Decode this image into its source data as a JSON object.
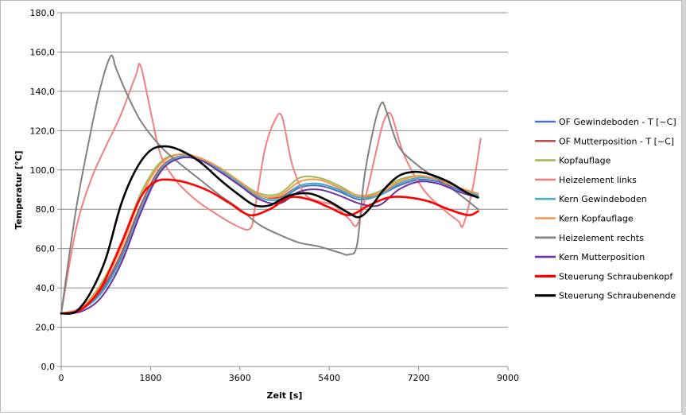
{
  "chart_data": {
    "type": "line",
    "xlabel": "Zeit [s]",
    "ylabel": "Temperatur [°C]",
    "xlim": [
      0,
      9000
    ],
    "ylim": [
      0,
      180
    ],
    "xticks": [
      "0",
      "1800",
      "3600",
      "5400",
      "7200",
      "9000"
    ],
    "xtick_values": [
      0,
      1800,
      3600,
      5400,
      7200,
      9000
    ],
    "yticks": [
      "0,0",
      "20,0",
      "40,0",
      "60,0",
      "80,0",
      "100,0",
      "120,0",
      "140,0",
      "160,0",
      "180,0"
    ],
    "ytick_values": [
      0,
      20,
      40,
      60,
      80,
      100,
      120,
      140,
      160,
      180
    ],
    "grid": "horizontal",
    "legend_position": "right",
    "series": [
      {
        "name": "OF Gewindeboden  - T [~C]",
        "color": "#4472c4",
        "width": 2,
        "x": [
          0,
          400,
          800,
          1200,
          1600,
          2000,
          2400,
          2800,
          3200,
          3600,
          4000,
          4400,
          4800,
          5200,
          5600,
          6000,
          6400,
          6800,
          7200,
          7600,
          8000,
          8400
        ],
        "y": [
          27,
          29,
          38,
          55,
          80,
          100,
          107,
          106,
          100,
          93,
          86,
          85,
          91,
          92,
          89,
          85,
          87,
          92,
          95,
          94,
          90,
          87
        ]
      },
      {
        "name": "OF Mutterposition - T [~C]",
        "color": "#c0504d",
        "width": 2,
        "x": [
          0,
          400,
          800,
          1200,
          1600,
          2000,
          2400,
          2800,
          3200,
          3600,
          4000,
          4400,
          4800,
          5200,
          5600,
          6000,
          6400,
          6800,
          7200,
          7600,
          8000,
          8400
        ],
        "y": [
          27,
          29,
          39,
          57,
          82,
          101,
          107,
          106,
          100,
          93,
          87,
          86,
          92,
          93,
          90,
          86,
          88,
          93,
          96,
          95,
          91,
          87
        ]
      },
      {
        "name": "Kopfauflage",
        "color": "#9bbb59",
        "width": 2,
        "x": [
          0,
          400,
          800,
          1200,
          1600,
          2000,
          2400,
          2800,
          3200,
          3600,
          4000,
          4400,
          4800,
          5200,
          5600,
          6000,
          6400,
          6800,
          7200,
          7600,
          8000,
          8400
        ],
        "y": [
          27,
          30,
          42,
          62,
          88,
          104,
          108,
          106,
          101,
          94,
          88,
          88,
          96,
          96,
          92,
          87,
          89,
          95,
          97,
          95,
          91,
          88
        ]
      },
      {
        "name": "Heizelement links",
        "color": "#f08080",
        "width": 2,
        "x": [
          0,
          300,
          600,
          900,
          1200,
          1500,
          1600,
          1800,
          2000,
          2300,
          2700,
          3100,
          3500,
          3800,
          3900,
          4100,
          4300,
          4450,
          4650,
          4900,
          5200,
          5500,
          5800,
          5960,
          6150,
          6350,
          6500,
          6650,
          6900,
          7300,
          7700,
          8000,
          8100,
          8300,
          8450
        ],
        "y": [
          27,
          70,
          95,
          112,
          128,
          148,
          153,
          130,
          108,
          95,
          85,
          78,
          72,
          70,
          80,
          110,
          125,
          127,
          103,
          88,
          84,
          82,
          75,
          72,
          88,
          110,
          125,
          128,
          108,
          90,
          80,
          74,
          72,
          92,
          116
        ]
      },
      {
        "name": "Kern Gewindeboden",
        "color": "#4bacc6",
        "width": 2,
        "x": [
          0,
          400,
          800,
          1200,
          1600,
          2000,
          2400,
          2800,
          3200,
          3600,
          4000,
          4400,
          4800,
          5200,
          5600,
          6000,
          6400,
          6800,
          7200,
          7600,
          8000,
          8400
        ],
        "y": [
          27,
          29,
          37,
          54,
          80,
          100,
          107,
          106,
          100,
          93,
          86,
          85,
          92,
          93,
          90,
          86,
          87,
          93,
          96,
          95,
          91,
          87
        ]
      },
      {
        "name": "Kern Kopfauflage",
        "color": "#f79646",
        "width": 2,
        "x": [
          0,
          400,
          800,
          1200,
          1600,
          2000,
          2400,
          2800,
          3200,
          3600,
          4000,
          4400,
          4800,
          5200,
          5600,
          6000,
          6400,
          6800,
          7200,
          7600,
          8000,
          8400
        ],
        "y": [
          27,
          30,
          41,
          60,
          86,
          103,
          108,
          106,
          101,
          94,
          87,
          87,
          94,
          95,
          91,
          87,
          88,
          94,
          97,
          95,
          91,
          88
        ]
      },
      {
        "name": "Heizelement rechts",
        "color": "#808080",
        "width": 2,
        "x": [
          0,
          300,
          600,
          800,
          1000,
          1100,
          1300,
          1600,
          2000,
          2400,
          2800,
          3200,
          3600,
          4000,
          4400,
          4800,
          5200,
          5600,
          5800,
          5960,
          6100,
          6300,
          6450,
          6550,
          6800,
          7200,
          7600,
          8000,
          8400
        ],
        "y": [
          27,
          80,
          120,
          143,
          158,
          152,
          140,
          125,
          112,
          103,
          95,
          87,
          80,
          72,
          67,
          63,
          61,
          58,
          57,
          62,
          95,
          122,
          134,
          130,
          112,
          102,
          95,
          88,
          80
        ]
      },
      {
        "name": "Kern Mutterposition",
        "color": "#7030a0",
        "width": 2,
        "x": [
          0,
          400,
          800,
          1200,
          1600,
          2000,
          2400,
          2800,
          3200,
          3600,
          4000,
          4400,
          4800,
          5200,
          5600,
          6000,
          6400,
          6800,
          7200,
          7600,
          8000,
          8400
        ],
        "y": [
          27,
          28,
          35,
          52,
          78,
          99,
          106,
          105,
          99,
          92,
          85,
          83,
          89,
          90,
          87,
          83,
          82,
          90,
          94,
          93,
          89,
          86
        ]
      },
      {
        "name": "Steuerung Schraubenkopf",
        "color": "#ff0000",
        "width": 2.6,
        "x": [
          0,
          400,
          800,
          1200,
          1600,
          1900,
          2200,
          2600,
          3000,
          3400,
          3800,
          4200,
          4600,
          5000,
          5400,
          5800,
          6200,
          6600,
          7000,
          7400,
          7800,
          8200,
          8400
        ],
        "y": [
          27,
          29,
          40,
          62,
          86,
          94,
          95,
          93,
          89,
          83,
          77,
          80,
          86,
          85,
          81,
          77,
          82,
          86,
          86,
          84,
          80,
          77,
          79
        ]
      },
      {
        "name": "Steuerung Schraubenende",
        "color": "#000000",
        "width": 2.6,
        "x": [
          0,
          300,
          600,
          900,
          1200,
          1500,
          1800,
          2100,
          2400,
          2800,
          3200,
          3600,
          3900,
          4200,
          4600,
          5000,
          5400,
          5800,
          6000,
          6200,
          6500,
          6800,
          7100,
          7400,
          7800,
          8200,
          8400
        ],
        "y": [
          27,
          28,
          38,
          55,
          82,
          100,
          110,
          112,
          110,
          104,
          95,
          87,
          82,
          82,
          87,
          88,
          84,
          78,
          76,
          80,
          90,
          97,
          99,
          98,
          94,
          88,
          86
        ]
      }
    ]
  }
}
